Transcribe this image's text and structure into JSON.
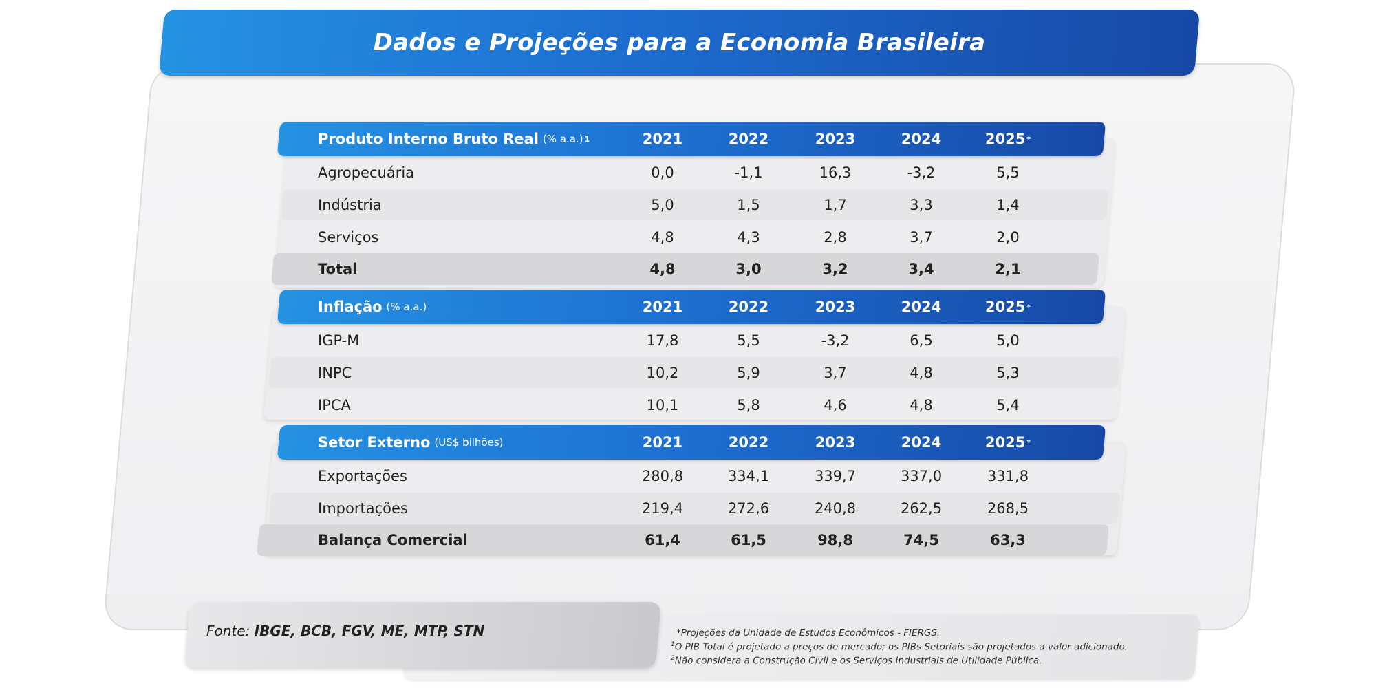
{
  "title": "Dados e Projeções para a Economia Brasileira",
  "colors": {
    "accent_start": "#2592e2",
    "accent_end": "#1748a6",
    "panel": "#efeff1"
  },
  "sections": [
    {
      "name": "Produto Interno Bruto Real",
      "unit": "(% a.a.)",
      "note_ref": "1",
      "years": [
        "2021",
        "2022",
        "2023",
        "2024",
        "2025"
      ],
      "projection_mark": "*",
      "rows": [
        {
          "label": "Agropecuária",
          "values": [
            "0,0",
            "-1,1",
            "16,3",
            "-3,2",
            "5,5"
          ]
        },
        {
          "label": "Indústria",
          "values": [
            "5,0",
            "1,5",
            "1,7",
            "3,3",
            "1,4"
          ]
        },
        {
          "label": "Serviços",
          "values": [
            "4,8",
            "4,3",
            "2,8",
            "3,7",
            "2,0"
          ]
        },
        {
          "label": "Total",
          "values": [
            "4,8",
            "3,0",
            "3,2",
            "3,4",
            "2,1"
          ]
        }
      ]
    },
    {
      "name": "Inflação",
      "unit": "(% a.a.)",
      "years": [
        "2021",
        "2022",
        "2023",
        "2024",
        "2025"
      ],
      "projection_mark": "*",
      "rows": [
        {
          "label": "IGP-M",
          "values": [
            "17,8",
            "5,5",
            "-3,2",
            "6,5",
            "5,0"
          ]
        },
        {
          "label": "INPC",
          "values": [
            "10,2",
            "5,9",
            "3,7",
            "4,8",
            "5,3"
          ]
        },
        {
          "label": "IPCA",
          "values": [
            "10,1",
            "5,8",
            "4,6",
            "4,8",
            "5,4"
          ]
        }
      ]
    },
    {
      "name": "Setor Externo",
      "unit": "(US$ bilhões)",
      "years": [
        "2021",
        "2022",
        "2023",
        "2024",
        "2025"
      ],
      "projection_mark": "*",
      "rows": [
        {
          "label": "Exportações",
          "values": [
            "280,8",
            "334,1",
            "339,7",
            "337,0",
            "331,8"
          ]
        },
        {
          "label": "Importações",
          "values": [
            "219,4",
            "272,6",
            "240,8",
            "262,5",
            "268,5"
          ]
        },
        {
          "label": "Balança Comercial",
          "values": [
            "61,4",
            "61,5",
            "98,8",
            "74,5",
            "63,3"
          ]
        }
      ]
    }
  ],
  "footer": {
    "fonte_prefix": "Fonte:",
    "fonte_sources": "IBGE, BCB, FGV, ME, MTP, STN",
    "notes": [
      {
        "mark": "*",
        "text": "Projeções da Unidade de Estudos Econômicos - FIERGS."
      },
      {
        "mark": "1",
        "text": "O PIB Total é projetado a preços de mercado; os PIBs Setoriais são projetados a valor adicionado."
      },
      {
        "mark": "2",
        "text": "Não considera a Construção Civil e os Serviços Industriais de Utilidade Pública."
      }
    ]
  }
}
